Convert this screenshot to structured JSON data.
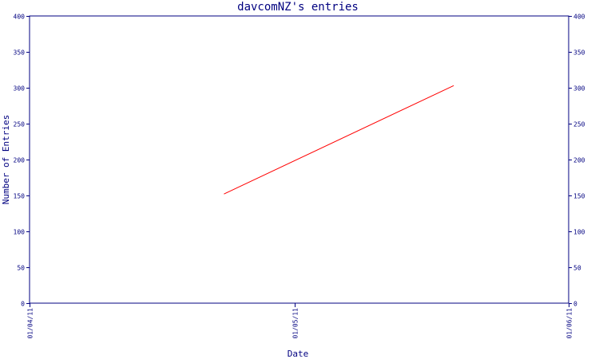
{
  "chart_data": {
    "type": "line",
    "title": "davcomNZ's entries",
    "xlabel": "Date",
    "ylabel": "Number of Entries",
    "x_ticks": [
      "01/04/11",
      "01/05/11",
      "01/06/11"
    ],
    "x_tick_dates": [
      "2011-04-01",
      "2011-05-01",
      "2011-06-01"
    ],
    "xlim": [
      "2011-04-01",
      "2011-06-01"
    ],
    "ylim": [
      0,
      400
    ],
    "y_ticks": [
      0,
      50,
      100,
      150,
      200,
      250,
      300,
      350,
      400
    ],
    "grid": false,
    "series": [
      {
        "color": "#ff0000",
        "x": [
          "2011-04-23",
          "2011-05-19"
        ],
        "y": [
          152,
          303
        ]
      }
    ]
  }
}
